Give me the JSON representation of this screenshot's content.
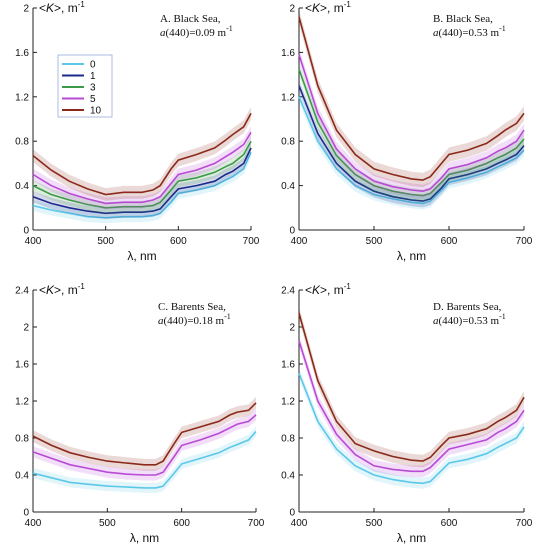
{
  "figure": {
    "background": "#ffffff",
    "series_colors": {
      "0": "#5bc8e8",
      "1": "#1c2a8c",
      "3": "#3d9a4a",
      "5": "#b84ad6",
      "10": "#8b2a1a"
    },
    "band_alpha": 0.18
  },
  "legend": {
    "panel": 0,
    "entries": [
      "0",
      "1",
      "3",
      "5",
      "10"
    ]
  },
  "chart_data": [
    {
      "type": "line",
      "panel_label": "A. Black Sea,",
      "a_label_prefix": "a",
      "a_label_arg": "(440)=0.09 m",
      "a_label_exp": "-1",
      "ylabel_prefix": "<",
      "ylabel_sym": "K",
      "ylabel_suffix": ">, m",
      "ylabel_exp": "-1",
      "xlabel": "λ, nm",
      "xlim": [
        400,
        700
      ],
      "ylim": [
        0,
        2
      ],
      "xticks": [
        "400",
        "500",
        "600",
        "700"
      ],
      "yticks": [
        "0",
        "0.4",
        "0.8",
        "1.2",
        "1.6",
        "2"
      ],
      "x": [
        400,
        425,
        450,
        475,
        500,
        525,
        550,
        565,
        575,
        590,
        600,
        625,
        650,
        665,
        675,
        690,
        700
      ],
      "series": [
        {
          "name": "0",
          "values": [
            0.22,
            0.18,
            0.15,
            0.12,
            0.11,
            0.12,
            0.12,
            0.13,
            0.15,
            0.25,
            0.33,
            0.36,
            0.4,
            0.45,
            0.48,
            0.55,
            0.7
          ]
        },
        {
          "name": "1",
          "values": [
            0.3,
            0.24,
            0.2,
            0.17,
            0.15,
            0.16,
            0.16,
            0.17,
            0.19,
            0.3,
            0.37,
            0.4,
            0.44,
            0.5,
            0.53,
            0.6,
            0.74
          ]
        },
        {
          "name": "3",
          "values": [
            0.4,
            0.32,
            0.27,
            0.23,
            0.2,
            0.21,
            0.21,
            0.22,
            0.25,
            0.36,
            0.44,
            0.47,
            0.52,
            0.57,
            0.6,
            0.68,
            0.8
          ]
        },
        {
          "name": "5",
          "values": [
            0.5,
            0.4,
            0.33,
            0.28,
            0.24,
            0.25,
            0.25,
            0.27,
            0.3,
            0.42,
            0.5,
            0.54,
            0.6,
            0.66,
            0.7,
            0.77,
            0.88
          ]
        },
        {
          "name": "10",
          "values": [
            0.67,
            0.54,
            0.44,
            0.37,
            0.32,
            0.34,
            0.34,
            0.36,
            0.4,
            0.55,
            0.63,
            0.68,
            0.74,
            0.81,
            0.86,
            0.93,
            1.05
          ]
        }
      ]
    },
    {
      "type": "line",
      "panel_label": "B. Black Sea,",
      "a_label_prefix": "a",
      "a_label_arg": "(440)=0.53 m",
      "a_label_exp": "-1",
      "ylabel_prefix": "<",
      "ylabel_sym": "K",
      "ylabel_suffix": ">, m",
      "ylabel_exp": "-1",
      "xlabel": "λ, nm",
      "xlim": [
        400,
        700
      ],
      "ylim": [
        0,
        2
      ],
      "xticks": [
        "400",
        "500",
        "600",
        "700"
      ],
      "yticks": [
        "0",
        "0.4",
        "0.8",
        "1.2",
        "1.6",
        "2"
      ],
      "x": [
        400,
        425,
        450,
        475,
        500,
        525,
        550,
        565,
        575,
        590,
        600,
        625,
        650,
        665,
        675,
        690,
        700
      ],
      "series": [
        {
          "name": "0",
          "values": [
            1.2,
            0.8,
            0.55,
            0.4,
            0.32,
            0.28,
            0.25,
            0.24,
            0.26,
            0.36,
            0.43,
            0.47,
            0.52,
            0.57,
            0.6,
            0.65,
            0.72
          ]
        },
        {
          "name": "1",
          "values": [
            1.3,
            0.87,
            0.6,
            0.44,
            0.35,
            0.3,
            0.27,
            0.26,
            0.28,
            0.38,
            0.46,
            0.5,
            0.55,
            0.6,
            0.63,
            0.68,
            0.76
          ]
        },
        {
          "name": "3",
          "values": [
            1.45,
            0.97,
            0.67,
            0.5,
            0.4,
            0.35,
            0.32,
            0.31,
            0.33,
            0.43,
            0.5,
            0.54,
            0.6,
            0.65,
            0.68,
            0.74,
            0.82
          ]
        },
        {
          "name": "5",
          "values": [
            1.58,
            1.05,
            0.73,
            0.55,
            0.44,
            0.39,
            0.36,
            0.35,
            0.37,
            0.47,
            0.55,
            0.59,
            0.65,
            0.71,
            0.74,
            0.8,
            0.9
          ]
        },
        {
          "name": "10",
          "values": [
            1.92,
            1.3,
            0.9,
            0.68,
            0.55,
            0.5,
            0.46,
            0.45,
            0.48,
            0.6,
            0.68,
            0.72,
            0.78,
            0.85,
            0.9,
            0.96,
            1.05
          ]
        }
      ]
    },
    {
      "type": "line",
      "panel_label": "C. Barents Sea,",
      "a_label_prefix": "a",
      "a_label_arg": "(440)=0.18 m",
      "a_label_exp": "-1",
      "ylabel_prefix": "<",
      "ylabel_sym": "K",
      "ylabel_suffix": ">, m",
      "ylabel_exp": "-1",
      "xlabel": "λ, nm",
      "xlim": [
        400,
        700
      ],
      "ylim": [
        0,
        2.4
      ],
      "xticks": [
        "400",
        "500",
        "600",
        "700"
      ],
      "yticks": [
        "0",
        "0.4",
        "0.8",
        "1.2",
        "1.6",
        "2",
        "2.4"
      ],
      "x": [
        400,
        425,
        450,
        475,
        500,
        525,
        550,
        565,
        575,
        590,
        600,
        625,
        650,
        665,
        675,
        690,
        700
      ],
      "series": [
        {
          "name": "0",
          "values": [
            0.42,
            0.37,
            0.32,
            0.3,
            0.28,
            0.27,
            0.26,
            0.26,
            0.28,
            0.42,
            0.52,
            0.58,
            0.64,
            0.7,
            0.73,
            0.78,
            0.87
          ]
        },
        {
          "name": "5",
          "values": [
            0.65,
            0.58,
            0.51,
            0.47,
            0.43,
            0.41,
            0.4,
            0.4,
            0.43,
            0.6,
            0.72,
            0.78,
            0.85,
            0.91,
            0.95,
            0.98,
            1.05
          ]
        },
        {
          "name": "10",
          "values": [
            0.82,
            0.72,
            0.64,
            0.59,
            0.55,
            0.53,
            0.51,
            0.51,
            0.55,
            0.74,
            0.86,
            0.92,
            0.98,
            1.05,
            1.08,
            1.1,
            1.18
          ]
        }
      ]
    },
    {
      "type": "line",
      "panel_label": "D. Barents Sea,",
      "a_label_prefix": "a",
      "a_label_arg": "(440)=0.53 m",
      "a_label_exp": "-1",
      "ylabel_prefix": "<",
      "ylabel_sym": "K",
      "ylabel_suffix": ">, m",
      "ylabel_exp": "-1",
      "xlabel": "λ, nm",
      "xlim": [
        400,
        700
      ],
      "ylim": [
        0,
        2.4
      ],
      "xticks": [
        "400",
        "500",
        "600",
        "700"
      ],
      "yticks": [
        "0",
        "0.4",
        "0.8",
        "1.2",
        "1.6",
        "2",
        "2.4"
      ],
      "x": [
        400,
        425,
        450,
        475,
        500,
        525,
        550,
        565,
        575,
        590,
        600,
        625,
        650,
        665,
        675,
        690,
        700
      ],
      "series": [
        {
          "name": "0",
          "values": [
            1.5,
            0.98,
            0.68,
            0.5,
            0.4,
            0.35,
            0.32,
            0.31,
            0.33,
            0.45,
            0.53,
            0.57,
            0.63,
            0.7,
            0.74,
            0.8,
            0.92
          ]
        },
        {
          "name": "5",
          "values": [
            1.85,
            1.2,
            0.84,
            0.62,
            0.5,
            0.46,
            0.44,
            0.44,
            0.48,
            0.6,
            0.68,
            0.73,
            0.78,
            0.86,
            0.9,
            0.98,
            1.1
          ]
        },
        {
          "name": "10",
          "values": [
            2.15,
            1.42,
            0.98,
            0.74,
            0.66,
            0.6,
            0.56,
            0.55,
            0.59,
            0.72,
            0.8,
            0.84,
            0.9,
            0.98,
            1.02,
            1.1,
            1.24
          ]
        }
      ]
    }
  ]
}
